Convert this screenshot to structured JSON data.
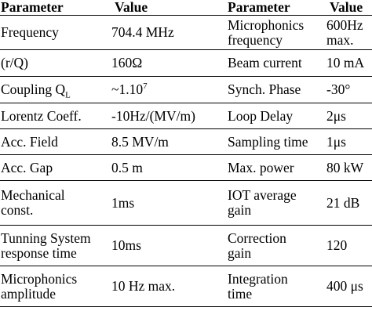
{
  "headers": [
    "Parameter",
    "Value",
    "Parameter",
    "Value"
  ],
  "rows": [
    {
      "p1": "Frequency",
      "v1": "704.4 MHz",
      "p2a": "Microphonics",
      "p2b": "frequency",
      "v2a": "600Hz",
      "v2b": "max."
    },
    {
      "p1": "(r/Q)",
      "v1": "160Ω",
      "p2": "Beam current",
      "v2": "10 mA"
    },
    {
      "p1_base": "Coupling Q",
      "p1_sub": "L",
      "v1_base": "~1.10",
      "v1_sup": "7",
      "p2": "Synch. Phase",
      "v2": "-30°"
    },
    {
      "p1": "Lorentz Coeff.",
      "v1": "-10Hz/(MV/m)",
      "p2": "Loop Delay",
      "v2": "2μs"
    },
    {
      "p1": "Acc. Field",
      "v1": "8.5 MV/m",
      "p2": "Sampling time",
      "v2": "1μs"
    },
    {
      "p1": "Acc. Gap",
      "v1": "0.5 m",
      "p2": "Max. power",
      "v2": "80 kW"
    },
    {
      "p1a": "Mechanical",
      "p1b": "const.",
      "v1": "1ms",
      "p2a": "IOT average",
      "p2b": "gain",
      "v2": "21 dB"
    },
    {
      "p1a": "Tunning System",
      "p1b": "response time",
      "v1": "10ms",
      "p2a": "Correction",
      "p2b": "gain",
      "v2": "120"
    },
    {
      "p1a": "Microphonics",
      "p1b": "amplitude",
      "v1": "10 Hz max.",
      "p2a": "Integration",
      "p2b": "time",
      "v2": "400 μs"
    }
  ]
}
